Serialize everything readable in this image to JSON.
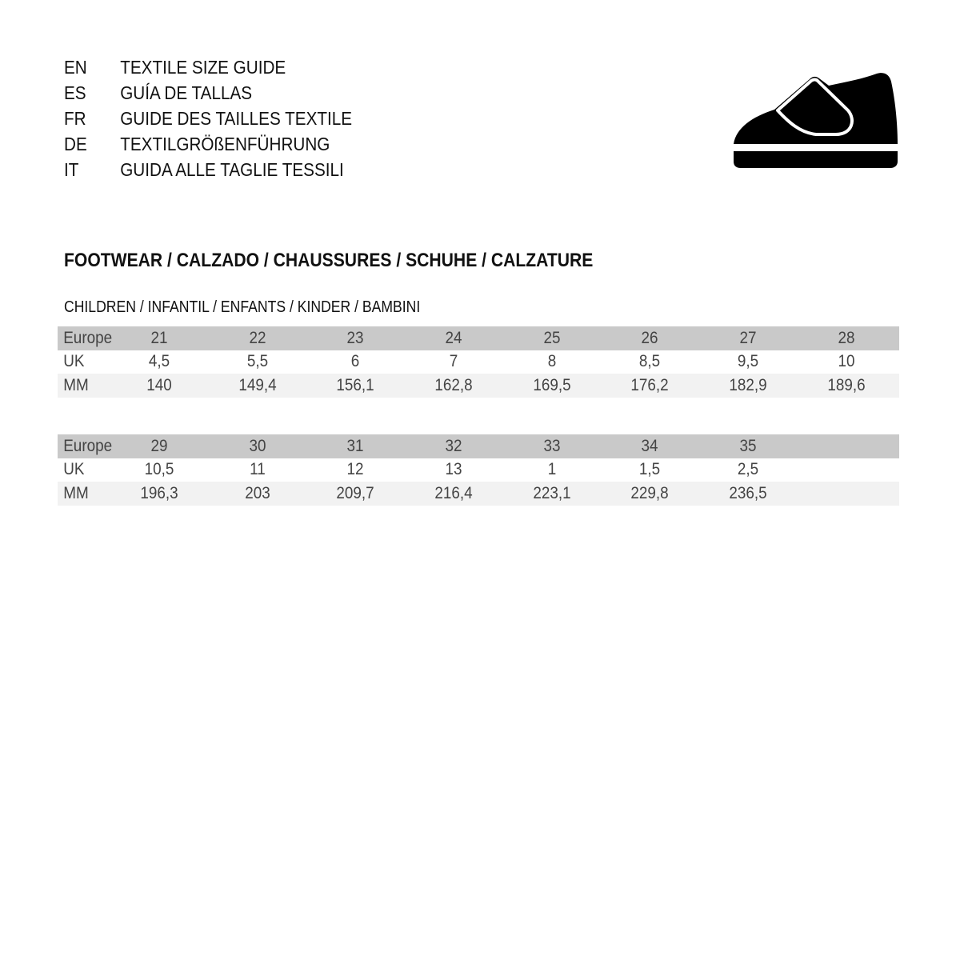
{
  "titles": [
    {
      "code": "EN",
      "text": "TEXTILE SIZE GUIDE"
    },
    {
      "code": "ES",
      "text": "GUÍA DE TALLAS"
    },
    {
      "code": "FR",
      "text": "GUIDE DES TAILLES TEXTILE"
    },
    {
      "code": "DE",
      "text": "TEXTILGRÖßENFÜHRUNG"
    },
    {
      "code": "IT",
      "text": "GUIDA ALLE TAGLIE TESSILI"
    }
  ],
  "icon": "children-shoe-icon",
  "section_title": "FOOTWEAR / CALZADO / CHAUSSURES / SCHUHE / CALZATURE",
  "subsection_title": "CHILDREN / INFANTIL / ENFANTS / KINDER / BAMBINI",
  "tables": [
    {
      "rows": [
        {
          "label": "Europe",
          "values": [
            "21",
            "22",
            "23",
            "24",
            "25",
            "26",
            "27",
            "28"
          ]
        },
        {
          "label": "UK",
          "values": [
            "4,5",
            "5,5",
            "6",
            "7",
            "8",
            "8,5",
            "9,5",
            "10"
          ]
        },
        {
          "label": "MM",
          "values": [
            "140",
            "149,4",
            "156,1",
            "162,8",
            "169,5",
            "176,2",
            "182,9",
            "189,6"
          ]
        }
      ]
    },
    {
      "rows": [
        {
          "label": "Europe",
          "values": [
            "29",
            "30",
            "31",
            "32",
            "33",
            "34",
            "35"
          ]
        },
        {
          "label": "UK",
          "values": [
            "10,5",
            "11",
            "12",
            "13",
            "1",
            "1,5",
            "2,5"
          ]
        },
        {
          "label": "MM",
          "values": [
            "196,3",
            "203",
            "209,7",
            "216,4",
            "223,1",
            "229,8",
            "236,5"
          ]
        }
      ]
    }
  ]
}
